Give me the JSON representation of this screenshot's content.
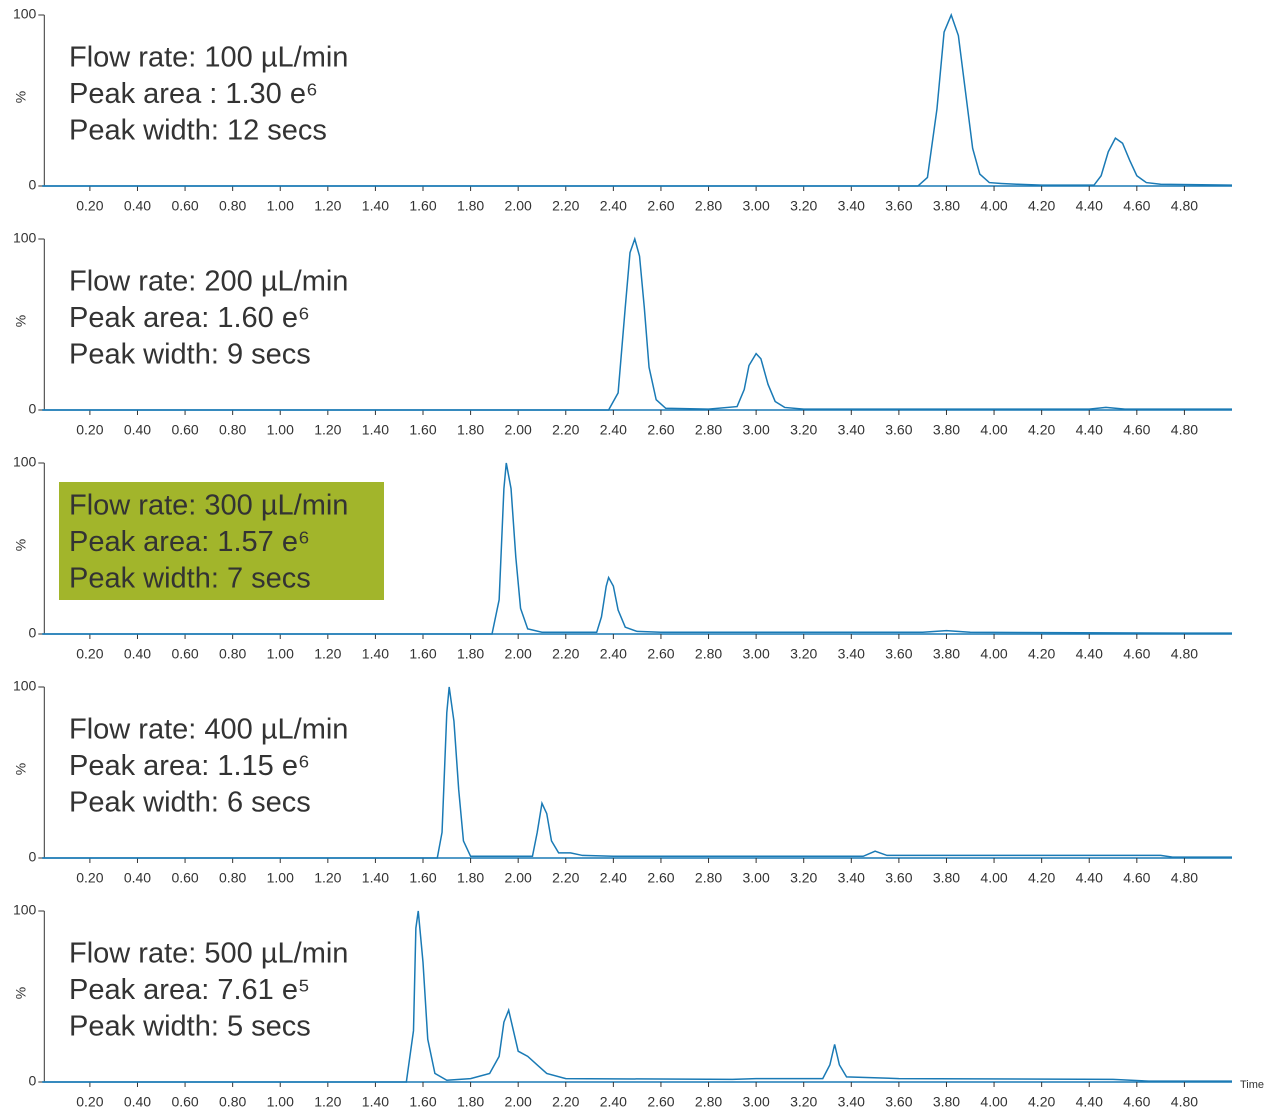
{
  "chart_data": [
    {
      "type": "line",
      "y_label": "%",
      "annotations": [
        "Flow rate: 100 µL/min",
        "Peak area : 1.30 e⁶",
        "Peak width: 12 secs"
      ],
      "color": "#1a7ab5",
      "xlim": [
        0,
        5
      ],
      "ylim": [
        0,
        100
      ],
      "yticks": [
        0,
        100
      ],
      "xticks": [
        {
          "value": 0.2,
          "label": "0.20"
        },
        {
          "value": 0.4,
          "label": "0.40"
        },
        {
          "value": 0.6,
          "label": "0.60"
        },
        {
          "value": 0.8,
          "label": "0.80"
        },
        {
          "value": 1,
          "label": "1.00"
        },
        {
          "value": 1.2,
          "label": "1.20"
        },
        {
          "value": 1.4,
          "label": "1.40"
        },
        {
          "value": 1.6,
          "label": "1.60"
        },
        {
          "value": 1.8,
          "label": "1.80"
        },
        {
          "value": 2,
          "label": "2.00"
        },
        {
          "value": 2.2,
          "label": "2.20"
        },
        {
          "value": 2.4,
          "label": "2.40"
        },
        {
          "value": 2.6,
          "label": "2.60"
        },
        {
          "value": 2.8,
          "label": "2.80"
        },
        {
          "value": 3,
          "label": "3.00"
        },
        {
          "value": 3.2,
          "label": "3.20"
        },
        {
          "value": 3.4,
          "label": "3.40"
        },
        {
          "value": 3.6,
          "label": "3.60"
        },
        {
          "value": 3.8,
          "label": "3.80"
        },
        {
          "value": 4,
          "label": "4.00"
        },
        {
          "value": 4.2,
          "label": "4.20"
        },
        {
          "value": 4.4,
          "label": "4.40"
        },
        {
          "value": 4.6,
          "label": "4.60"
        },
        {
          "value": 4.8,
          "label": "4.80"
        }
      ],
      "x": [
        0,
        3.68,
        3.72,
        3.76,
        3.79,
        3.82,
        3.85,
        3.88,
        3.91,
        3.94,
        3.98,
        4.03,
        4.1,
        4.2,
        4.42,
        4.45,
        4.48,
        4.51,
        4.54,
        4.57,
        4.6,
        4.64,
        4.7,
        5
      ],
      "values": [
        0,
        0,
        5,
        45,
        90,
        100,
        88,
        55,
        22,
        7,
        2,
        1.5,
        1,
        0.5,
        0.5,
        6,
        20,
        28,
        25,
        15,
        6,
        2,
        1,
        0.5
      ]
    },
    {
      "type": "line",
      "y_label": "%",
      "annotations": [
        "Flow rate: 200 µL/min",
        "Peak area: 1.60 e⁶",
        "Peak width: 9 secs"
      ],
      "color": "#1a7ab5",
      "xlim": [
        0,
        5
      ],
      "ylim": [
        0,
        100
      ],
      "yticks": [
        0,
        100
      ],
      "xticks": [
        {
          "value": 0.2,
          "label": "0.20"
        },
        {
          "value": 0.4,
          "label": "0.40"
        },
        {
          "value": 0.6,
          "label": "0.60"
        },
        {
          "value": 0.8,
          "label": "0.80"
        },
        {
          "value": 1,
          "label": "1.00"
        },
        {
          "value": 1.2,
          "label": "1.20"
        },
        {
          "value": 1.4,
          "label": "1.40"
        },
        {
          "value": 1.6,
          "label": "1.60"
        },
        {
          "value": 1.8,
          "label": "1.80"
        },
        {
          "value": 2,
          "label": "2.00"
        },
        {
          "value": 2.2,
          "label": "2.20"
        },
        {
          "value": 2.4,
          "label": "2.40"
        },
        {
          "value": 2.6,
          "label": "2.60"
        },
        {
          "value": 2.8,
          "label": "2.80"
        },
        {
          "value": 3,
          "label": "3.00"
        },
        {
          "value": 3.2,
          "label": "3.20"
        },
        {
          "value": 3.4,
          "label": "3.40"
        },
        {
          "value": 3.6,
          "label": "3.60"
        },
        {
          "value": 3.8,
          "label": "3.80"
        },
        {
          "value": 4,
          "label": "4.00"
        },
        {
          "value": 4.2,
          "label": "4.20"
        },
        {
          "value": 4.4,
          "label": "4.40"
        },
        {
          "value": 4.6,
          "label": "4.60"
        },
        {
          "value": 4.8,
          "label": "4.80"
        }
      ],
      "x": [
        0,
        2.38,
        2.42,
        2.45,
        2.47,
        2.49,
        2.51,
        2.53,
        2.55,
        2.58,
        2.62,
        2.8,
        2.92,
        2.95,
        2.97,
        3.0,
        3.02,
        3.05,
        3.08,
        3.12,
        3.2,
        4.4,
        4.47,
        4.55,
        5
      ],
      "values": [
        0,
        0,
        10,
        60,
        92,
        100,
        90,
        60,
        25,
        6,
        1,
        0.5,
        2,
        12,
        26,
        33,
        30,
        15,
        5,
        1.5,
        0.5,
        0.5,
        1.5,
        0.5,
        0.5
      ]
    },
    {
      "type": "line",
      "y_label": "%",
      "annotations": [
        "Flow rate: 300 µL/min",
        "Peak area: 1.57 e⁶",
        "Peak width: 7 secs"
      ],
      "annotation_background": "#a2b52b",
      "color": "#1a7ab5",
      "xlim": [
        0,
        5
      ],
      "ylim": [
        0,
        100
      ],
      "yticks": [
        0,
        100
      ],
      "xticks": [
        {
          "value": 0.2,
          "label": "0.20"
        },
        {
          "value": 0.4,
          "label": "0.40"
        },
        {
          "value": 0.6,
          "label": "0.60"
        },
        {
          "value": 0.8,
          "label": "0.80"
        },
        {
          "value": 1,
          "label": "1.00"
        },
        {
          "value": 1.2,
          "label": "1.20"
        },
        {
          "value": 1.4,
          "label": "1.40"
        },
        {
          "value": 1.6,
          "label": "1.60"
        },
        {
          "value": 1.8,
          "label": "1.80"
        },
        {
          "value": 2,
          "label": "2.00"
        },
        {
          "value": 2.2,
          "label": "2.20"
        },
        {
          "value": 2.4,
          "label": "2.40"
        },
        {
          "value": 2.6,
          "label": "2.60"
        },
        {
          "value": 2.8,
          "label": "2.80"
        },
        {
          "value": 3,
          "label": "3.00"
        },
        {
          "value": 3.2,
          "label": "3.20"
        },
        {
          "value": 3.4,
          "label": "3.40"
        },
        {
          "value": 3.6,
          "label": "3.60"
        },
        {
          "value": 3.8,
          "label": "3.80"
        },
        {
          "value": 4,
          "label": "4.00"
        },
        {
          "value": 4.2,
          "label": "4.20"
        },
        {
          "value": 4.4,
          "label": "4.40"
        },
        {
          "value": 4.6,
          "label": "4.60"
        },
        {
          "value": 4.8,
          "label": "4.80"
        }
      ],
      "x": [
        0,
        1.89,
        1.92,
        1.94,
        1.95,
        1.97,
        1.99,
        2.01,
        2.04,
        2.1,
        2.33,
        2.35,
        2.37,
        2.38,
        2.4,
        2.42,
        2.45,
        2.5,
        2.6,
        3.7,
        3.8,
        3.9,
        4.8,
        5
      ],
      "values": [
        0,
        0,
        20,
        85,
        100,
        85,
        45,
        15,
        3,
        1,
        1,
        10,
        28,
        33,
        28,
        14,
        4,
        1.5,
        1,
        1,
        2,
        1,
        0.5,
        0.5
      ]
    },
    {
      "type": "line",
      "y_label": "%",
      "annotations": [
        "Flow rate: 400 µL/min",
        "Peak area: 1.15 e⁶",
        "Peak width: 6 secs"
      ],
      "color": "#1a7ab5",
      "xlim": [
        0,
        5
      ],
      "ylim": [
        0,
        100
      ],
      "yticks": [
        0,
        100
      ],
      "xticks": [
        {
          "value": 0.2,
          "label": "0.20"
        },
        {
          "value": 0.4,
          "label": "0.40"
        },
        {
          "value": 0.6,
          "label": "0.60"
        },
        {
          "value": 0.8,
          "label": "0.80"
        },
        {
          "value": 1,
          "label": "1.00"
        },
        {
          "value": 1.2,
          "label": "1.20"
        },
        {
          "value": 1.4,
          "label": "1.40"
        },
        {
          "value": 1.6,
          "label": "1.60"
        },
        {
          "value": 1.8,
          "label": "1.80"
        },
        {
          "value": 2,
          "label": "2.00"
        },
        {
          "value": 2.2,
          "label": "2.20"
        },
        {
          "value": 2.4,
          "label": "2.40"
        },
        {
          "value": 2.6,
          "label": "2.60"
        },
        {
          "value": 2.8,
          "label": "2.80"
        },
        {
          "value": 3,
          "label": "3.00"
        },
        {
          "value": 3.2,
          "label": "3.20"
        },
        {
          "value": 3.4,
          "label": "3.40"
        },
        {
          "value": 3.6,
          "label": "3.60"
        },
        {
          "value": 3.8,
          "label": "3.80"
        },
        {
          "value": 4,
          "label": "4.00"
        },
        {
          "value": 4.2,
          "label": "4.20"
        },
        {
          "value": 4.4,
          "label": "4.40"
        },
        {
          "value": 4.6,
          "label": "4.60"
        },
        {
          "value": 4.8,
          "label": "4.80"
        }
      ],
      "x": [
        0,
        1.66,
        1.68,
        1.7,
        1.71,
        1.73,
        1.75,
        1.77,
        1.8,
        2.06,
        2.08,
        2.1,
        2.12,
        2.14,
        2.17,
        2.22,
        2.27,
        2.4,
        3.45,
        3.5,
        3.55,
        4.7,
        4.75,
        5
      ],
      "values": [
        0,
        0,
        15,
        85,
        100,
        80,
        40,
        10,
        1,
        1,
        15,
        32,
        26,
        10,
        3,
        3,
        1.5,
        1,
        1,
        4,
        1.5,
        1.5,
        0.5,
        0.5
      ]
    },
    {
      "type": "line",
      "y_label": "%",
      "x_label": "Time",
      "annotations": [
        "Flow rate: 500 µL/min",
        "Peak area: 7.61 e⁵",
        "Peak width: 5 secs"
      ],
      "color": "#1a7ab5",
      "xlim": [
        0,
        5
      ],
      "ylim": [
        0,
        100
      ],
      "yticks": [
        0,
        100
      ],
      "xticks": [
        {
          "value": 0.2,
          "label": "0.20"
        },
        {
          "value": 0.4,
          "label": "0.40"
        },
        {
          "value": 0.6,
          "label": "0.60"
        },
        {
          "value": 0.8,
          "label": "0.80"
        },
        {
          "value": 1,
          "label": "1.00"
        },
        {
          "value": 1.2,
          "label": "1.20"
        },
        {
          "value": 1.4,
          "label": "1.40"
        },
        {
          "value": 1.6,
          "label": "1.60"
        },
        {
          "value": 1.8,
          "label": "1.80"
        },
        {
          "value": 2,
          "label": "2.00"
        },
        {
          "value": 2.2,
          "label": "2.20"
        },
        {
          "value": 2.4,
          "label": "2.40"
        },
        {
          "value": 2.6,
          "label": "2.60"
        },
        {
          "value": 2.8,
          "label": "2.80"
        },
        {
          "value": 3,
          "label": "3.00"
        },
        {
          "value": 3.2,
          "label": "3.20"
        },
        {
          "value": 3.4,
          "label": "3.40"
        },
        {
          "value": 3.6,
          "label": "3.60"
        },
        {
          "value": 3.8,
          "label": "3.80"
        },
        {
          "value": 4,
          "label": "4.00"
        },
        {
          "value": 4.2,
          "label": "4.20"
        },
        {
          "value": 4.4,
          "label": "4.40"
        },
        {
          "value": 4.6,
          "label": "4.60"
        },
        {
          "value": 4.8,
          "label": "4.80"
        }
      ],
      "x": [
        0,
        1.53,
        1.56,
        1.57,
        1.58,
        1.6,
        1.62,
        1.65,
        1.7,
        1.8,
        1.88,
        1.92,
        1.94,
        1.96,
        1.98,
        2.0,
        2.04,
        2.08,
        2.12,
        2.2,
        2.9,
        3.0,
        3.28,
        3.31,
        3.33,
        3.35,
        3.38,
        3.6,
        4.5,
        4.65,
        5
      ],
      "values": [
        0,
        0,
        30,
        90,
        100,
        70,
        25,
        5,
        1,
        2,
        5,
        15,
        35,
        42,
        30,
        18,
        15,
        10,
        5,
        2,
        1.5,
        2,
        2,
        10,
        22,
        10,
        3,
        2,
        1.5,
        0.5,
        0.5
      ]
    }
  ]
}
